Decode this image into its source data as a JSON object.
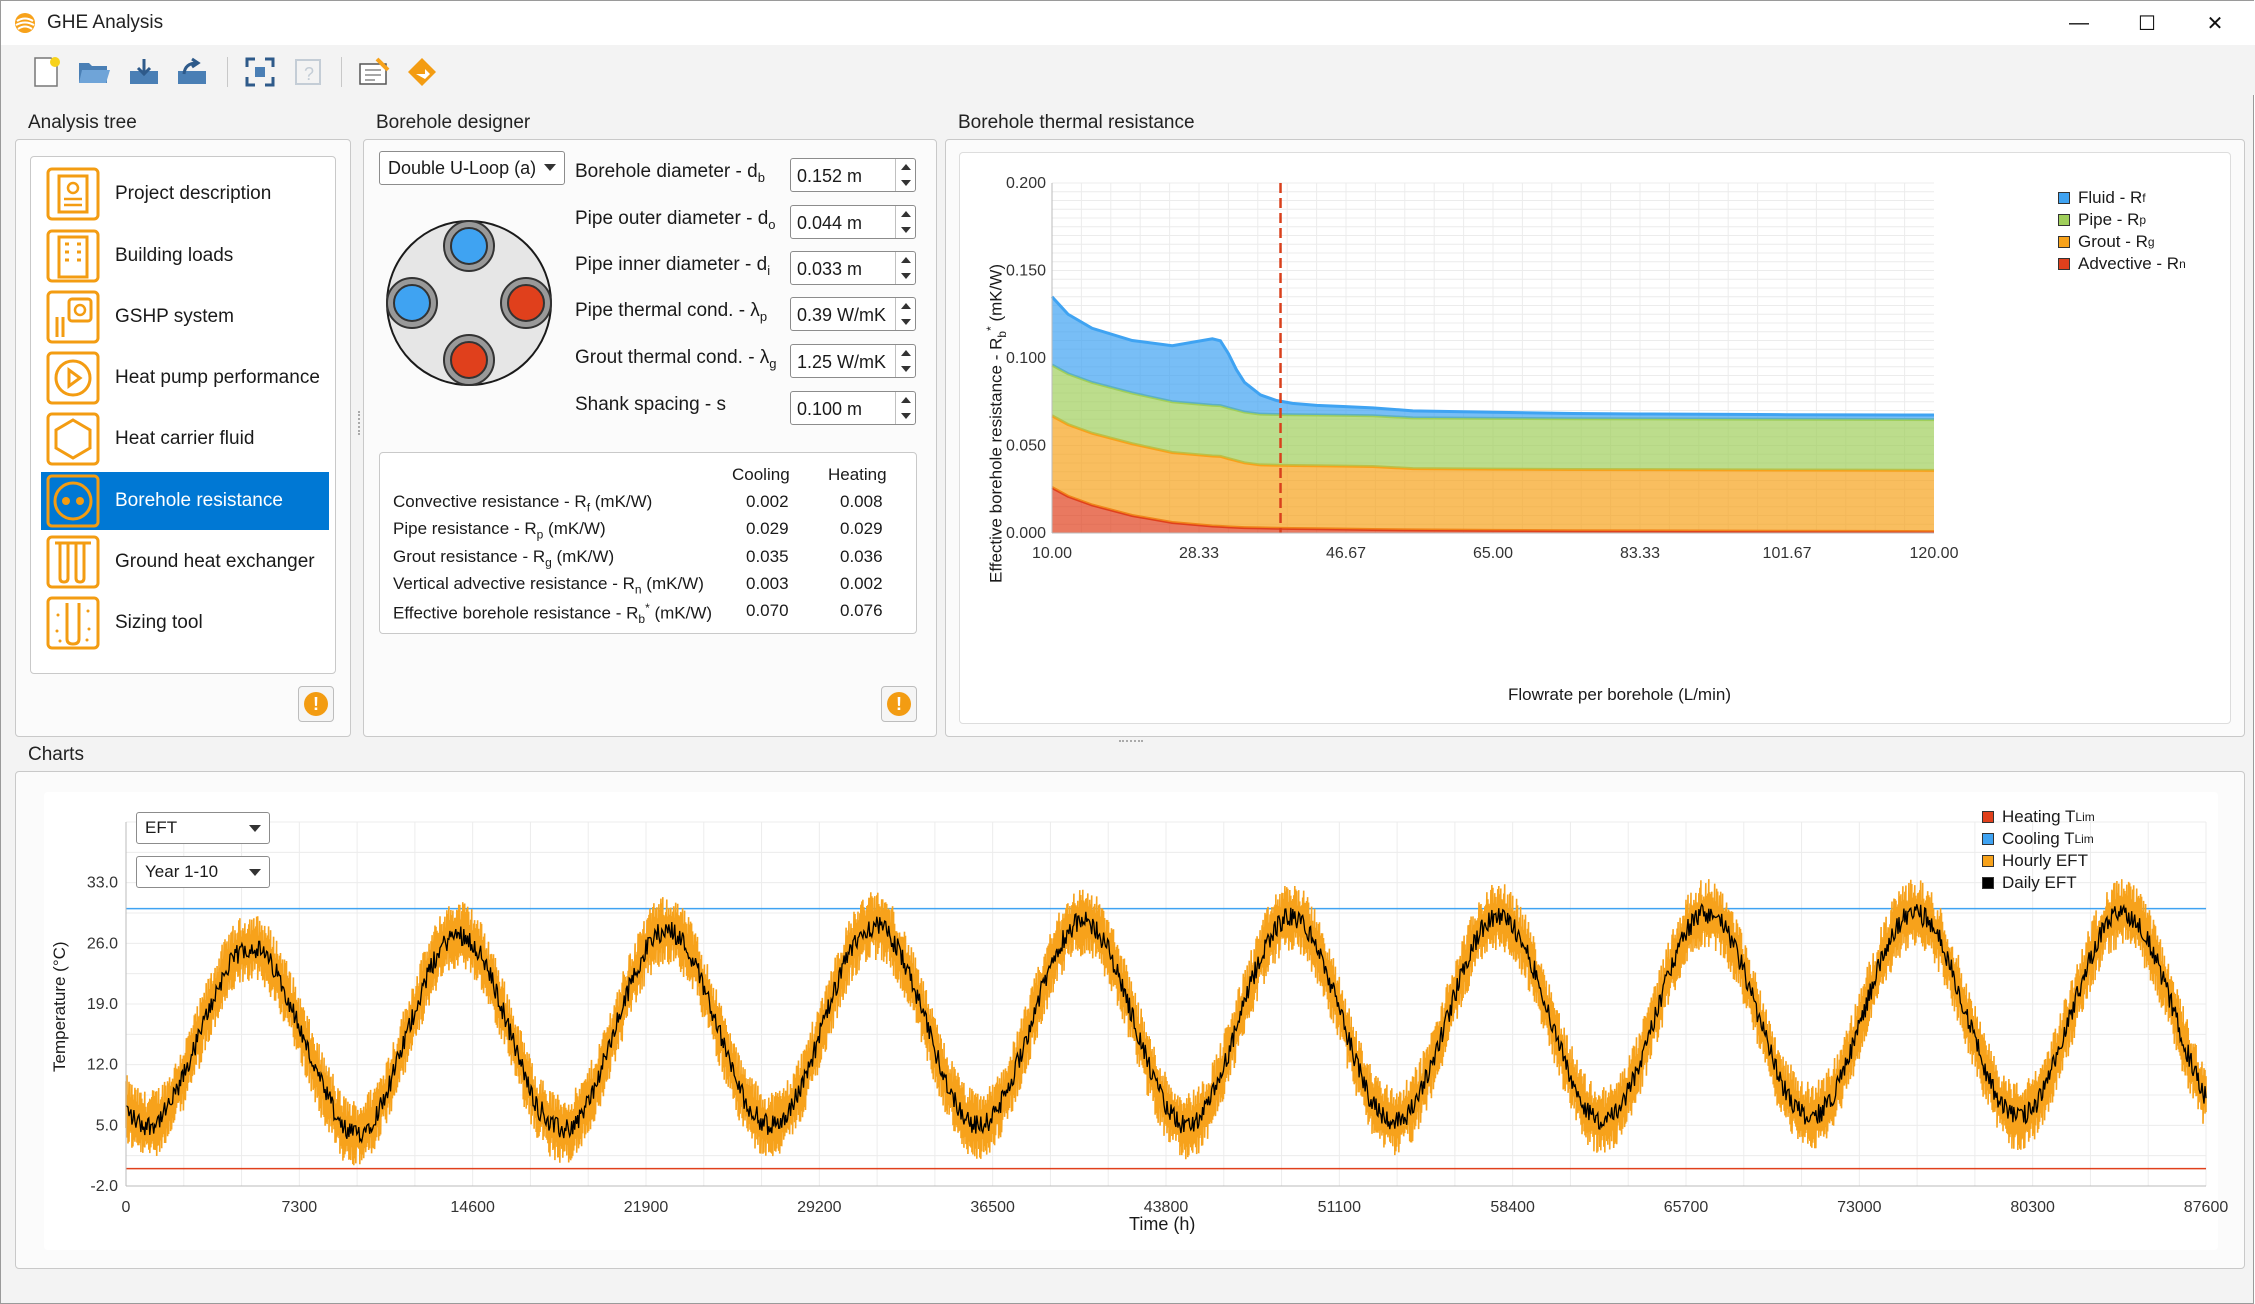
{
  "window": {
    "title": "GHE Analysis",
    "minimize": "—",
    "maximize": "☐",
    "close": "✕"
  },
  "toolbar": {
    "icons": [
      "new-file-icon",
      "open-folder-icon",
      "save-icon",
      "save-as-icon",
      "fullscreen-icon",
      "help-icon",
      "edit-icon",
      "run-icon"
    ]
  },
  "analysis_tree": {
    "label": "Analysis tree",
    "items": [
      {
        "label": "Project description",
        "icon": "clipboard-icon"
      },
      {
        "label": "Building loads",
        "icon": "building-icon"
      },
      {
        "label": "GSHP system",
        "icon": "gshp-system-icon"
      },
      {
        "label": "Heat pump performance",
        "icon": "play-icon"
      },
      {
        "label": "Heat carrier fluid",
        "icon": "hexagon-icon"
      },
      {
        "label": "Borehole resistance",
        "icon": "borehole-icon"
      },
      {
        "label": "Ground heat exchanger",
        "icon": "ground-pipes-icon"
      },
      {
        "label": "Sizing tool",
        "icon": "sizing-icon"
      }
    ],
    "selected_index": 5
  },
  "borehole_designer": {
    "label": "Borehole designer",
    "config_select": "Double U-Loop (a)",
    "fields": [
      {
        "label": "Borehole diameter - d",
        "sub": "b",
        "value": "0.152 m"
      },
      {
        "label": "Pipe outer diameter - d",
        "sub": "o",
        "value": "0.044 m"
      },
      {
        "label": "Pipe inner diameter - d",
        "sub": "i",
        "value": "0.033 m"
      },
      {
        "label": "Pipe thermal cond. - λ",
        "sub": "p",
        "value": "0.39 W/mK"
      },
      {
        "label": "Grout thermal cond. - λ",
        "sub": "g",
        "value": "1.25 W/mK"
      },
      {
        "label": "Shank spacing - s",
        "sub": "",
        "value": "0.100 m"
      }
    ],
    "results": {
      "col_cooling": "Cooling",
      "col_heating": "Heating",
      "rows": [
        {
          "label": "Convective resistance - R",
          "sub": "f",
          "sup": "",
          "unit": " (mK/W)",
          "cooling": "0.002",
          "heating": "0.008"
        },
        {
          "label": "Pipe resistance - R",
          "sub": "p",
          "sup": "",
          "unit": " (mK/W)",
          "cooling": "0.029",
          "heating": "0.029"
        },
        {
          "label": "Grout resistance - R",
          "sub": "g",
          "sup": "",
          "unit": " (mK/W)",
          "cooling": "0.035",
          "heating": "0.036"
        },
        {
          "label": "Vertical advective resistance - R",
          "sub": "n",
          "sup": "",
          "unit": " (mK/W)",
          "cooling": "0.003",
          "heating": "0.002"
        },
        {
          "label": "Effective borehole resistance - R",
          "sub": "b",
          "sup": "*",
          "unit": " (mK/W)",
          "cooling": "0.070",
          "heating": "0.076"
        }
      ]
    }
  },
  "resistance_chart": {
    "label": "Borehole thermal resistance",
    "ylabel_main": "Effective borehole resistance - R",
    "ylabel_sub": "b",
    "ylabel_sup": "*",
    "ylabel_unit": " (mK/W)",
    "xlabel": "Flowrate per borehole (L/min)",
    "x_ticks": [
      "10.00",
      "28.33",
      "46.67",
      "65.00",
      "83.33",
      "101.67",
      "120.00"
    ],
    "y_ticks": [
      "0.000",
      "0.050",
      "0.100",
      "0.150",
      "0.200"
    ],
    "legend": [
      {
        "label": "Fluid - R",
        "sub": "f",
        "color": "#3fa3f2"
      },
      {
        "label": "Pipe - R",
        "sub": "p",
        "color": "#a0cf5b"
      },
      {
        "label": "Grout - R",
        "sub": "g",
        "color": "#f7a21b"
      },
      {
        "label": "Advective - R",
        "sub": "n",
        "color": "#e0401c"
      }
    ]
  },
  "chart_data": [
    {
      "type": "area",
      "title": "",
      "xlabel": "Flowrate per borehole (L/min)",
      "ylabel": "Effective borehole resistance - Rb* (mK/W)",
      "xlim": [
        10,
        120
      ],
      "ylim": [
        0,
        0.2
      ],
      "grid": true,
      "legend_position": "top-right",
      "stacked": true,
      "x": [
        10,
        12,
        15,
        20,
        25,
        30,
        31,
        32,
        33,
        34,
        36,
        38,
        40,
        43,
        46.67,
        50,
        55,
        65,
        75,
        83.33,
        95,
        101.67,
        110,
        120
      ],
      "series": [
        {
          "name": "Advective - Rn",
          "color": "#e0401c",
          "values": [
            0.026,
            0.021,
            0.016,
            0.01,
            0.006,
            0.004,
            0.0038,
            0.0035,
            0.0033,
            0.0031,
            0.0029,
            0.0027,
            0.0026,
            0.0024,
            0.0022,
            0.002,
            0.0018,
            0.0015,
            0.0013,
            0.0012,
            0.0011,
            0.001,
            0.0009,
            0.0008
          ]
        },
        {
          "name": "Grout - Rg",
          "color": "#f7a21b",
          "values": [
            0.041,
            0.041,
            0.041,
            0.041,
            0.04,
            0.04,
            0.04,
            0.039,
            0.038,
            0.037,
            0.036,
            0.036,
            0.036,
            0.036,
            0.036,
            0.036,
            0.035,
            0.035,
            0.035,
            0.035,
            0.035,
            0.035,
            0.035,
            0.035
          ]
        },
        {
          "name": "Pipe - Rp",
          "color": "#a0cf5b",
          "values": [
            0.029,
            0.029,
            0.029,
            0.029,
            0.029,
            0.029,
            0.029,
            0.029,
            0.029,
            0.029,
            0.029,
            0.029,
            0.029,
            0.029,
            0.029,
            0.029,
            0.029,
            0.029,
            0.029,
            0.029,
            0.029,
            0.029,
            0.029,
            0.029
          ]
        },
        {
          "name": "Fluid - Rf",
          "color": "#3fa3f2",
          "values": [
            0.039,
            0.034,
            0.031,
            0.03,
            0.032,
            0.038,
            0.037,
            0.031,
            0.023,
            0.017,
            0.011,
            0.008,
            0.0065,
            0.0055,
            0.005,
            0.0045,
            0.004,
            0.0035,
            0.003,
            0.0028,
            0.0027,
            0.0026,
            0.0026,
            0.0026
          ]
        }
      ],
      "marker_x": 38.5,
      "marker_color": "#d9401c"
    },
    {
      "type": "line",
      "title": "",
      "xlabel": "Time (h)",
      "ylabel": "Temperature (°C)",
      "xlim": [
        0,
        87600
      ],
      "ylim": [
        -2,
        40
      ],
      "grid": true,
      "legend_position": "top-right",
      "x_ticks": [
        0,
        7300,
        14600,
        21900,
        29200,
        36500,
        43800,
        51100,
        58400,
        65700,
        73000,
        80300,
        87600
      ],
      "y_ticks": [
        -2.0,
        5.0,
        12.0,
        19.0,
        26.0,
        33.0
      ],
      "heating_limit": 0.0,
      "cooling_limit": 30.0,
      "yearly_peaks": [
        25.5,
        27.0,
        27.5,
        28.0,
        28.5,
        29.0,
        29.0,
        29.5,
        29.5,
        29.5
      ],
      "yearly_troughs": [
        5.0,
        4.0,
        4.5,
        5.0,
        5.0,
        5.0,
        5.5,
        5.5,
        6.0,
        6.0
      ],
      "series": [
        {
          "name": "Heating TLim",
          "color": "#e0401c"
        },
        {
          "name": "Cooling TLim",
          "color": "#3fa3f2"
        },
        {
          "name": "Hourly EFT",
          "color": "#f7a21b"
        },
        {
          "name": "Daily EFT",
          "color": "#000000"
        }
      ]
    }
  ],
  "charts_panel": {
    "label": "Charts",
    "variable_select": "EFT",
    "period_select": "Year 1-10",
    "ylabel": "Temperature (°C)",
    "xlabel": "Time (h)",
    "x_ticks": [
      "0",
      "7300",
      "14600",
      "21900",
      "29200",
      "36500",
      "43800",
      "51100",
      "58400",
      "65700",
      "73000",
      "80300",
      "87600"
    ],
    "y_ticks": [
      "-2.0",
      "5.0",
      "12.0",
      "19.0",
      "26.0",
      "33.0"
    ],
    "legend": [
      {
        "label": "Heating T",
        "sub": "Lim",
        "color": "#e0401c"
      },
      {
        "label": "Cooling T",
        "sub": "Lim",
        "color": "#3fa3f2"
      },
      {
        "label": "Hourly EFT",
        "sub": "",
        "color": "#f7a21b"
      },
      {
        "label": "Daily EFT",
        "sub": "",
        "color": "#000000"
      }
    ]
  },
  "warning_icon": "!"
}
